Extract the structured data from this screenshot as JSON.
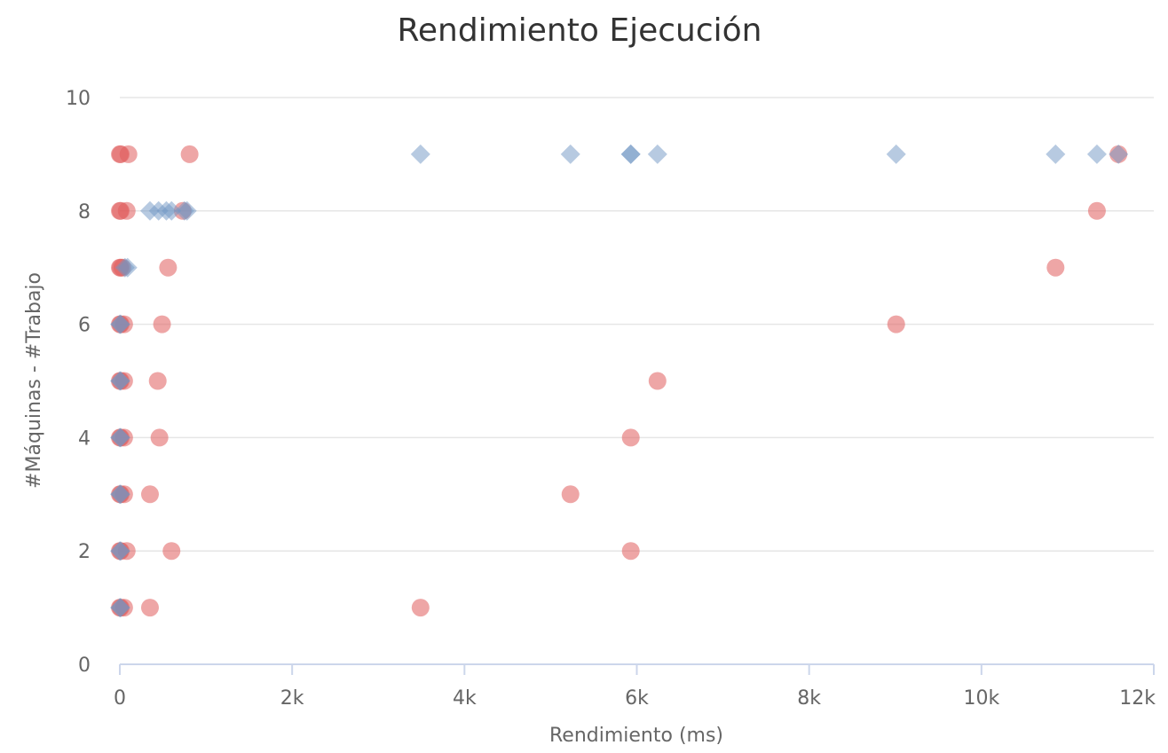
{
  "chart_data": {
    "type": "scatter",
    "title": "Rendimiento Ejecución",
    "xlabel": "Rendimiento (ms)",
    "ylabel": "#Máquinas - #Trabajo",
    "xlim": [
      0,
      12000
    ],
    "ylim": [
      0,
      10
    ],
    "x_ticks": [
      {
        "value": 0,
        "label": "0"
      },
      {
        "value": 2000,
        "label": "2k"
      },
      {
        "value": 4000,
        "label": "4k"
      },
      {
        "value": 6000,
        "label": "6k"
      },
      {
        "value": 8000,
        "label": "8k"
      },
      {
        "value": 10000,
        "label": "10k"
      },
      {
        "value": 12000,
        "label": "12k"
      }
    ],
    "y_ticks": [
      {
        "value": 0,
        "label": "0"
      },
      {
        "value": 2,
        "label": "2"
      },
      {
        "value": 4,
        "label": "4"
      },
      {
        "value": 6,
        "label": "6"
      },
      {
        "value": 8,
        "label": "8"
      },
      {
        "value": 10,
        "label": "10"
      }
    ],
    "grid": true,
    "legend": false,
    "series": [
      {
        "marker": "circle",
        "color": "#e05c5c",
        "points": [
          [
            0,
            1
          ],
          [
            10,
            1
          ],
          [
            50,
            1
          ],
          [
            350,
            1
          ],
          [
            3490,
            1
          ],
          [
            0,
            2
          ],
          [
            10,
            2
          ],
          [
            80,
            2
          ],
          [
            600,
            2
          ],
          [
            5930,
            2
          ],
          [
            0,
            3
          ],
          [
            10,
            3
          ],
          [
            50,
            3
          ],
          [
            350,
            3
          ],
          [
            5230,
            3
          ],
          [
            0,
            4
          ],
          [
            10,
            4
          ],
          [
            50,
            4
          ],
          [
            460,
            4
          ],
          [
            5930,
            4
          ],
          [
            0,
            5
          ],
          [
            10,
            5
          ],
          [
            50,
            5
          ],
          [
            440,
            5
          ],
          [
            6240,
            5
          ],
          [
            0,
            6
          ],
          [
            10,
            6
          ],
          [
            50,
            6
          ],
          [
            490,
            6
          ],
          [
            9010,
            6
          ],
          [
            0,
            7
          ],
          [
            10,
            7
          ],
          [
            30,
            7
          ],
          [
            560,
            7
          ],
          [
            10860,
            7
          ],
          [
            0,
            8
          ],
          [
            10,
            8
          ],
          [
            80,
            8
          ],
          [
            730,
            8
          ],
          [
            11340,
            8
          ],
          [
            0,
            9
          ],
          [
            10,
            9
          ],
          [
            100,
            9
          ],
          [
            810,
            9
          ],
          [
            11590,
            9
          ]
        ]
      },
      {
        "marker": "diamond",
        "color": "#6f95c3",
        "points": [
          [
            0,
            1
          ],
          [
            10,
            1
          ],
          [
            0,
            2
          ],
          [
            10,
            2
          ],
          [
            0,
            3
          ],
          [
            10,
            3
          ],
          [
            0,
            4
          ],
          [
            10,
            4
          ],
          [
            0,
            5
          ],
          [
            10,
            5
          ],
          [
            0,
            6
          ],
          [
            10,
            6
          ],
          [
            60,
            7
          ],
          [
            90,
            7
          ],
          [
            350,
            8
          ],
          [
            450,
            8
          ],
          [
            540,
            8
          ],
          [
            600,
            8
          ],
          [
            750,
            8
          ],
          [
            780,
            8
          ],
          [
            3490,
            9
          ],
          [
            5230,
            9
          ],
          [
            5930,
            9
          ],
          [
            5930,
            9
          ],
          [
            6240,
            9
          ],
          [
            9010,
            9
          ],
          [
            10860,
            9
          ],
          [
            11340,
            9
          ],
          [
            11590,
            9
          ]
        ]
      }
    ]
  }
}
